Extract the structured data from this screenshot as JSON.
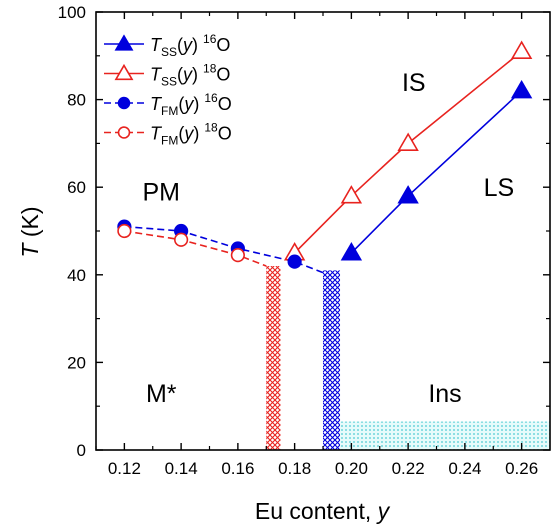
{
  "chart_data": {
    "type": "line",
    "xlabel_main": "Eu content, ",
    "xlabel_var": "y",
    "ylabel_var": "T",
    "ylabel_unit": " (K)",
    "xlim": [
      0.11,
      0.27
    ],
    "ylim": [
      0,
      100
    ],
    "x_ticks": [
      "0.12",
      "0.14",
      "0.16",
      "0.18",
      "0.20",
      "0.22",
      "0.24",
      "0.26"
    ],
    "y_ticks": [
      "0",
      "20",
      "40",
      "60",
      "80",
      "100"
    ],
    "series": [
      {
        "legend": {
          "var": "T",
          "sub": "SS",
          "arg": "(y)",
          "sup": "16",
          "el": "O"
        },
        "color": "#0000dd",
        "marker": "triangle",
        "filled": true,
        "dashed": false,
        "x": [
          0.2,
          0.22,
          0.26
        ],
        "y": [
          45,
          58,
          82
        ]
      },
      {
        "legend": {
          "var": "T",
          "sub": "SS",
          "arg": "(y)",
          "sup": "18",
          "el": "O"
        },
        "color": "#e8231f",
        "marker": "triangle",
        "filled": false,
        "dashed": false,
        "x": [
          0.18,
          0.2,
          0.22,
          0.26
        ],
        "y": [
          45,
          58,
          70,
          91
        ]
      },
      {
        "legend": {
          "var": "T",
          "sub": "FM",
          "arg": "(y)",
          "sup": "16",
          "el": "O"
        },
        "color": "#0000dd",
        "marker": "circle",
        "filled": true,
        "dashed": true,
        "x": [
          0.12,
          0.14,
          0.16,
          0.18,
          0.19
        ],
        "y": [
          51,
          50,
          46,
          43,
          40.5
        ],
        "marker_points": 4
      },
      {
        "legend": {
          "var": "T",
          "sub": "FM",
          "arg": "(y)",
          "sup": "18",
          "el": "O"
        },
        "color": "#e8231f",
        "marker": "circle",
        "filled": false,
        "dashed": true,
        "x": [
          0.12,
          0.14,
          0.16,
          0.17
        ],
        "y": [
          50,
          48,
          44.5,
          42
        ],
        "marker_points": 3
      }
    ],
    "regions": [
      {
        "x0": 0.17,
        "x1": 0.175,
        "y0": 0,
        "y1": 42,
        "pattern": "hatch-red"
      },
      {
        "x0": 0.19,
        "x1": 0.196,
        "y0": 0,
        "y1": 41,
        "pattern": "hatch-blue"
      },
      {
        "x0": 0.196,
        "x1": 0.27,
        "y0": 0,
        "y1": 6.5,
        "pattern": "dots-cyan"
      }
    ],
    "annotations": [
      {
        "text": "PM",
        "x": 0.133,
        "y": 57
      },
      {
        "text": "IS",
        "x": 0.222,
        "y": 82
      },
      {
        "text": "LS",
        "x": 0.252,
        "y": 58
      },
      {
        "text": "M*",
        "x": 0.133,
        "y": 11
      },
      {
        "text": "Ins",
        "x": 0.233,
        "y": 11
      }
    ]
  }
}
